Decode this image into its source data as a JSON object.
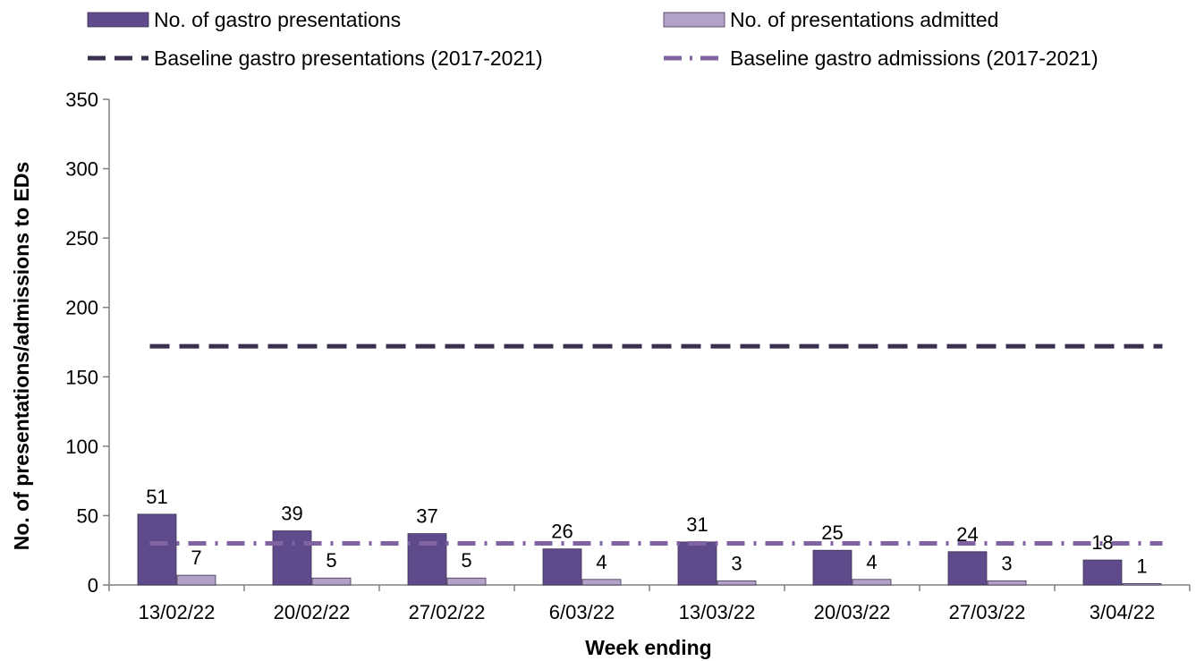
{
  "chart_data": {
    "type": "bar",
    "xlabel": "Week ending",
    "ylabel": "No. of presentations/admissions to EDs",
    "ylim": [
      0,
      350
    ],
    "yticks": [
      0,
      50,
      100,
      150,
      200,
      250,
      300,
      350
    ],
    "grid": false,
    "legend_position": "top",
    "categories": [
      "13/02/22",
      "20/02/22",
      "27/02/22",
      "6/03/22",
      "13/03/22",
      "20/03/22",
      "27/03/22",
      "3/04/22"
    ],
    "series": [
      {
        "name": "No. of gastro presentations",
        "type": "bar",
        "color": "#5f4b8b",
        "values": [
          51,
          39,
          37,
          26,
          31,
          25,
          24,
          18
        ],
        "show_labels": true
      },
      {
        "name": "No. of presentations admitted",
        "type": "bar",
        "color": "#b3a2c7",
        "values": [
          7,
          5,
          5,
          4,
          3,
          4,
          3,
          1
        ],
        "show_labels": true
      },
      {
        "name": "Baseline gastro presentations (2017-2021)",
        "type": "line",
        "style": "dashed",
        "color": "#3b2f4f",
        "values": [
          172,
          172,
          172,
          172,
          172,
          172,
          172,
          172
        ]
      },
      {
        "name": "Baseline gastro admissions (2017-2021)",
        "type": "line",
        "style": "dash-dot",
        "color": "#8064a2",
        "values": [
          30,
          30,
          30,
          30,
          30,
          30,
          30,
          30
        ]
      }
    ]
  }
}
